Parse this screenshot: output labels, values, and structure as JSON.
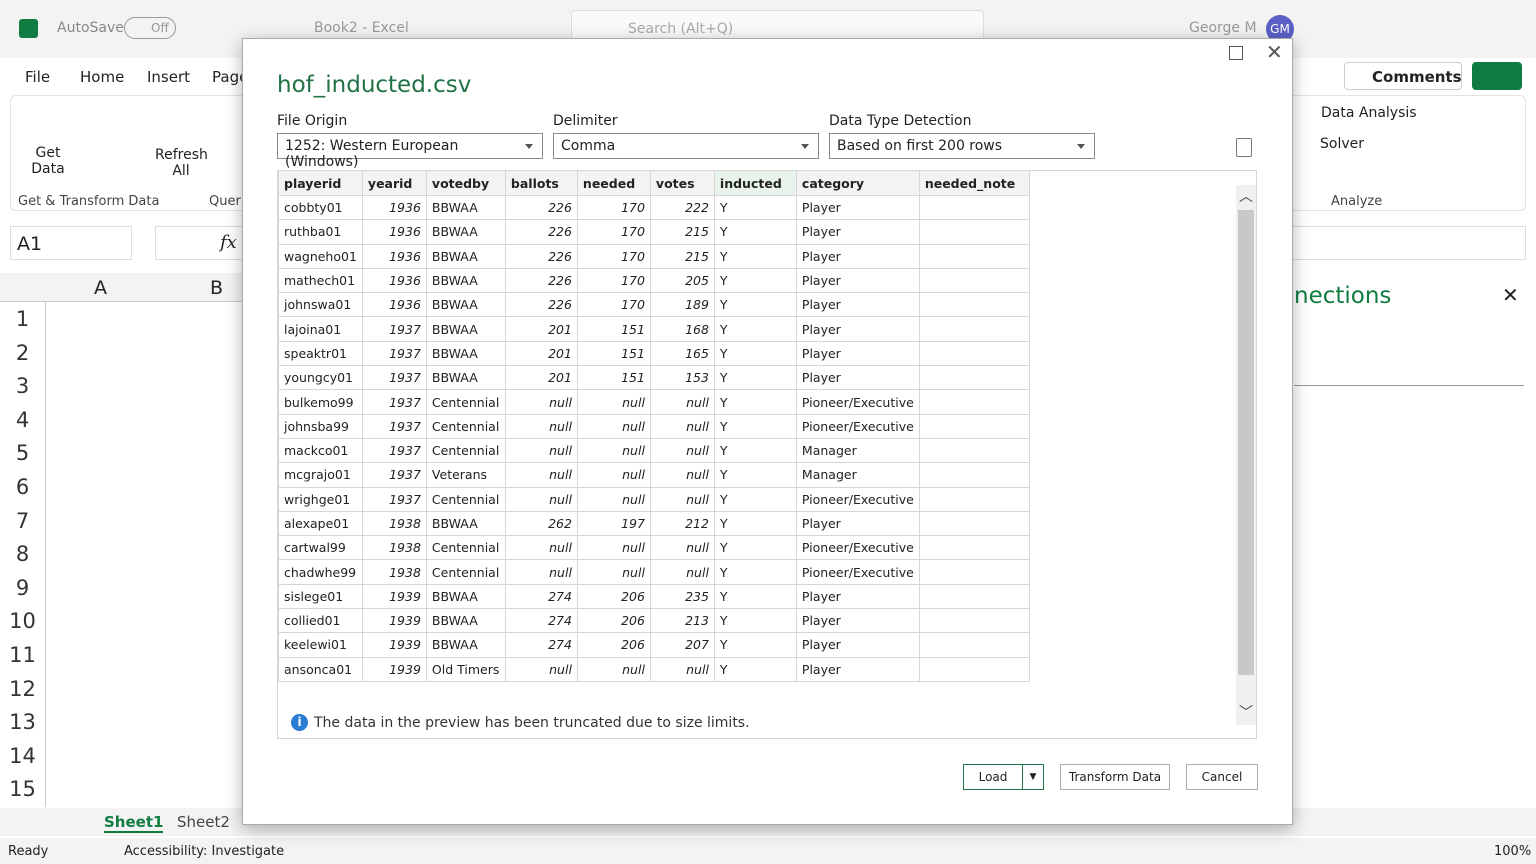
{
  "excel": {
    "autosave": "AutoSave",
    "autosave_state": "Off",
    "file_title": "Book2  -  Excel",
    "search": "Search (Alt+Q)",
    "user": "George M",
    "user_initials": "GM",
    "tabs": [
      "File",
      "Home",
      "Insert",
      "Page"
    ],
    "comments": "Comments",
    "get_data": "Get Data",
    "refresh_all": "Refresh All",
    "group_get_transform": "Get & Transform Data",
    "group_queries": "Queri",
    "data_analysis": "Data Analysis",
    "solver": "Solver",
    "group_analyze": "Analyze",
    "name_box": "A1",
    "fx": "fx",
    "columns": [
      "A",
      "B"
    ],
    "rows": [
      1,
      2,
      3,
      4,
      5,
      6,
      7,
      8,
      9,
      10,
      11,
      12,
      13,
      14,
      15
    ],
    "pane_title": "nections",
    "sheets": [
      "Sheet1",
      "Sheet2"
    ],
    "status": "Ready",
    "accessibility": "Accessibility: Investigate",
    "zoom": "100%"
  },
  "dialog": {
    "title": "hof_inducted.csv",
    "file_origin_label": "File Origin",
    "file_origin": "1252: Western European (Windows)",
    "delimiter_label": "Delimiter",
    "delimiter": "Comma",
    "detection_label": "Data Type Detection",
    "detection": "Based on first 200 rows",
    "table": {
      "columns": [
        "playerid",
        "yearid",
        "votedby",
        "ballots",
        "needed",
        "votes",
        "inducted",
        "category",
        "needed_note"
      ],
      "rows": [
        [
          "cobbty01",
          1936,
          "BBWAA",
          226,
          170,
          222,
          "Y",
          "Player"
        ],
        [
          "ruthba01",
          1936,
          "BBWAA",
          226,
          170,
          215,
          "Y",
          "Player"
        ],
        [
          "wagneho01",
          1936,
          "BBWAA",
          226,
          170,
          215,
          "Y",
          "Player"
        ],
        [
          "mathech01",
          1936,
          "BBWAA",
          226,
          170,
          205,
          "Y",
          "Player"
        ],
        [
          "johnswa01",
          1936,
          "BBWAA",
          226,
          170,
          189,
          "Y",
          "Player"
        ],
        [
          "lajoina01",
          1937,
          "BBWAA",
          201,
          151,
          168,
          "Y",
          "Player"
        ],
        [
          "speaktr01",
          1937,
          "BBWAA",
          201,
          151,
          165,
          "Y",
          "Player"
        ],
        [
          "youngcy01",
          1937,
          "BBWAA",
          201,
          151,
          153,
          "Y",
          "Player"
        ],
        [
          "bulkemo99",
          1937,
          "Centennial",
          "null",
          "null",
          "null",
          "Y",
          "Pioneer/Executive"
        ],
        [
          "johnsba99",
          1937,
          "Centennial",
          "null",
          "null",
          "null",
          "Y",
          "Pioneer/Executive"
        ],
        [
          "mackco01",
          1937,
          "Centennial",
          "null",
          "null",
          "null",
          "Y",
          "Manager"
        ],
        [
          "mcgrajo01",
          1937,
          "Veterans",
          "null",
          "null",
          "null",
          "Y",
          "Manager"
        ],
        [
          "wrighge01",
          1937,
          "Centennial",
          "null",
          "null",
          "null",
          "Y",
          "Pioneer/Executive"
        ],
        [
          "alexape01",
          1938,
          "BBWAA",
          262,
          197,
          212,
          "Y",
          "Player"
        ],
        [
          "cartwal99",
          1938,
          "Centennial",
          "null",
          "null",
          "null",
          "Y",
          "Pioneer/Executive"
        ],
        [
          "chadwhe99",
          1938,
          "Centennial",
          "null",
          "null",
          "null",
          "Y",
          "Pioneer/Executive"
        ],
        [
          "sislege01",
          1939,
          "BBWAA",
          274,
          206,
          235,
          "Y",
          "Player"
        ],
        [
          "collied01",
          1939,
          "BBWAA",
          274,
          206,
          213,
          "Y",
          "Player"
        ],
        [
          "keelewi01",
          1939,
          "BBWAA",
          274,
          206,
          207,
          "Y",
          "Player"
        ],
        [
          "ansonca01",
          1939,
          "Old Timers",
          "null",
          "null",
          "null",
          "Y",
          "Player"
        ]
      ]
    },
    "notice": "The data in the preview has been truncated due to size limits.",
    "load": "Load",
    "transform": "Transform Data",
    "cancel": "Cancel"
  }
}
